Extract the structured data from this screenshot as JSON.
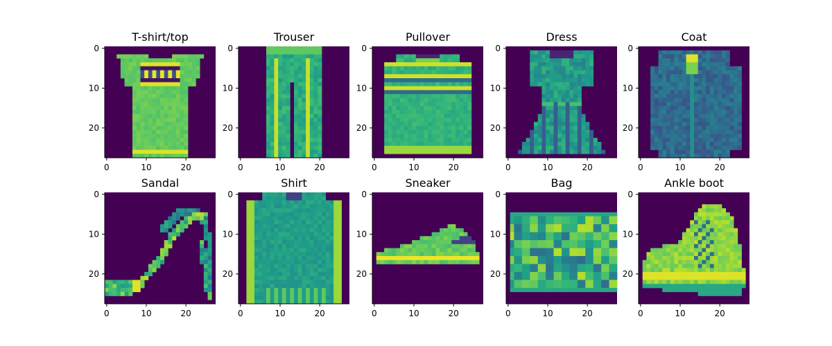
{
  "chart_data": {
    "type": "heatmap",
    "colormap": "viridis",
    "colors": {
      "background": "#440154",
      "mid": "#21918c",
      "high": "#fde725"
    },
    "image_size": [
      28,
      28
    ],
    "xticks": [
      0,
      10,
      20
    ],
    "yticks": [
      0,
      10,
      20
    ],
    "panels": [
      {
        "title": "T-shirt/top",
        "shape": "tshirt"
      },
      {
        "title": "Trouser",
        "shape": "trouser"
      },
      {
        "title": "Pullover",
        "shape": "pullover"
      },
      {
        "title": "Dress",
        "shape": "dress"
      },
      {
        "title": "Coat",
        "shape": "coat"
      },
      {
        "title": "Sandal",
        "shape": "sandal"
      },
      {
        "title": "Shirt",
        "shape": "shirt"
      },
      {
        "title": "Sneaker",
        "shape": "sneaker"
      },
      {
        "title": "Bag",
        "shape": "bag"
      },
      {
        "title": "Ankle boot",
        "shape": "boot"
      }
    ]
  }
}
